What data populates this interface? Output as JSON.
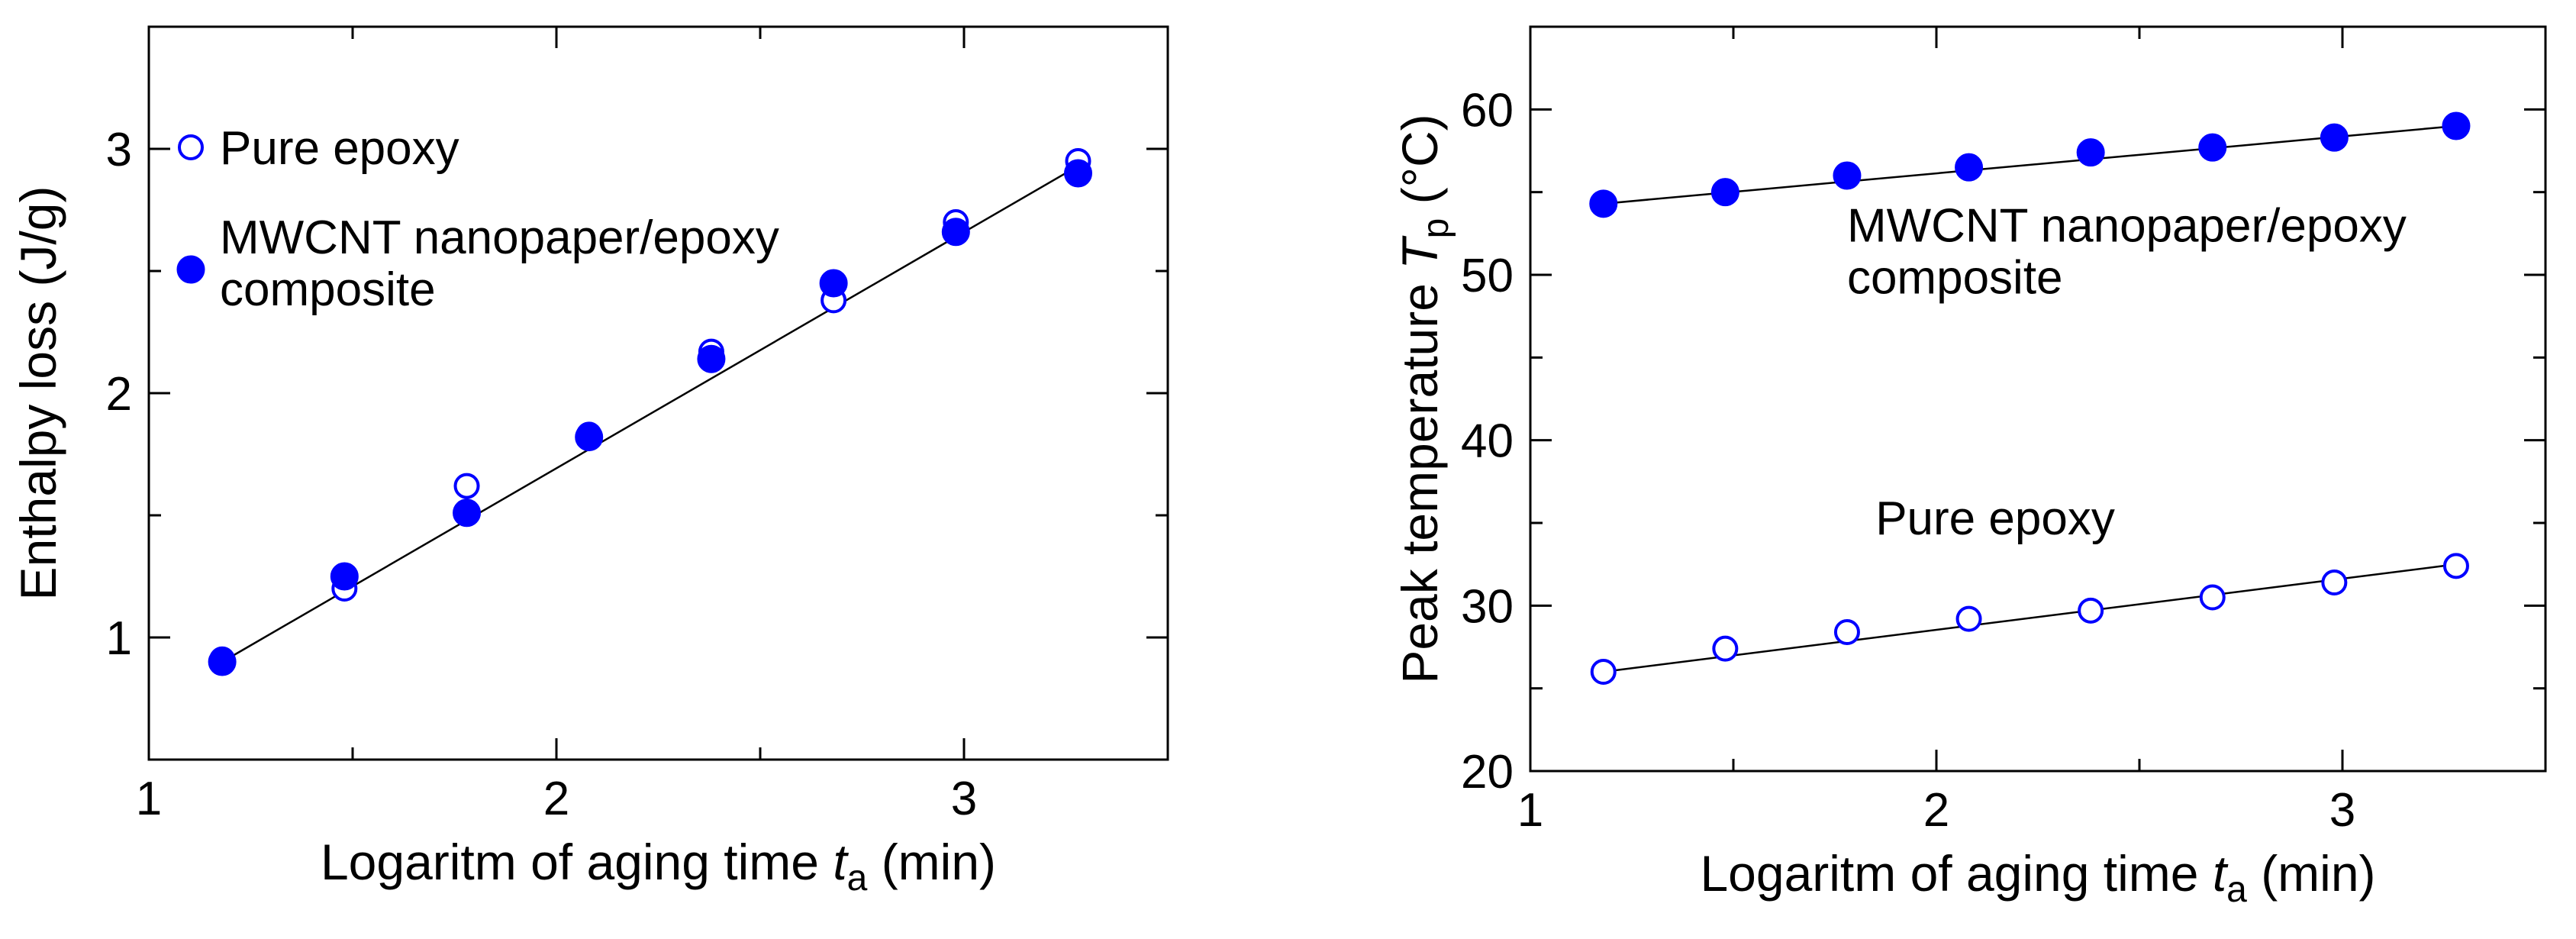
{
  "chart_data": [
    {
      "type": "scatter",
      "title": "",
      "xlabel": "Logaritm of aging time t_a (min)",
      "xlabel_parts": {
        "before": "Logaritm of aging time ",
        "var": "t",
        "sub": "a",
        "after": " (min)"
      },
      "ylabel": "Enthalpy loss (J/g)",
      "xlim": [
        1,
        3.5
      ],
      "ylim": [
        0.5,
        3.5
      ],
      "xticks": [
        1,
        2,
        3
      ],
      "yticks": [
        1,
        2,
        3
      ],
      "x_tick_labels": [
        "1",
        "2",
        "3"
      ],
      "y_tick_labels": [
        "1",
        "2",
        "3"
      ],
      "legend": [
        {
          "label": "Pure epoxy",
          "marker": "open-circle"
        },
        {
          "label_lines": [
            "MWCNT nanopaper/epoxy",
            "composite"
          ],
          "marker": "filled-circle"
        }
      ],
      "series": [
        {
          "name": "Pure epoxy",
          "marker": "open-circle",
          "color": "#0000ff",
          "x": [
            1.18,
            1.48,
            1.78,
            2.08,
            2.38,
            2.68,
            2.98,
            3.28
          ],
          "y": [
            0.91,
            1.2,
            1.62,
            1.83,
            2.17,
            2.38,
            2.7,
            2.95
          ]
        },
        {
          "name": "MWCNT nanopaper/epoxy composite",
          "marker": "filled-circle",
          "color": "#0000ff",
          "x": [
            1.18,
            1.48,
            1.78,
            2.08,
            2.38,
            2.68,
            2.98,
            3.28
          ],
          "y": [
            0.9,
            1.25,
            1.51,
            1.82,
            2.14,
            2.45,
            2.66,
            2.9
          ]
        }
      ],
      "fit_lines": [
        {
          "x": [
            1.18,
            3.28
          ],
          "y": [
            0.9,
            2.93
          ]
        }
      ]
    },
    {
      "type": "scatter",
      "title": "",
      "xlabel": "Logaritm of aging time t_a (min)",
      "xlabel_parts": {
        "before": "Logaritm of aging time ",
        "var": "t",
        "sub": "a",
        "after": " (min)"
      },
      "ylabel": "Peak temperature T_p (°C)",
      "ylabel_parts": {
        "before": "Peak temperature ",
        "var": "T",
        "sub": "p",
        "after": " (°C)"
      },
      "xlim": [
        1,
        3.5
      ],
      "ylim": [
        20,
        65
      ],
      "xticks": [
        1,
        2,
        3
      ],
      "yticks": [
        20,
        30,
        40,
        50,
        60
      ],
      "x_tick_labels": [
        "1",
        "2",
        "3"
      ],
      "y_tick_labels": [
        "20",
        "30",
        "40",
        "50",
        "60"
      ],
      "annotations": [
        {
          "lines": [
            "MWCNT nanopaper/epoxy",
            "composite"
          ],
          "x": 1.78,
          "y": 52
        },
        {
          "lines": [
            "Pure epoxy"
          ],
          "x": 1.85,
          "y": 34.3
        }
      ],
      "series": [
        {
          "name": "MWCNT nanopaper/epoxy composite",
          "marker": "filled-circle",
          "color": "#0000ff",
          "x": [
            1.18,
            1.48,
            1.78,
            2.08,
            2.38,
            2.68,
            2.98,
            3.28
          ],
          "y": [
            54.3,
            55,
            56,
            56.5,
            57.4,
            57.7,
            58.3,
            59
          ]
        },
        {
          "name": "Pure epoxy",
          "marker": "open-circle",
          "color": "#0000ff",
          "x": [
            1.18,
            1.48,
            1.78,
            2.08,
            2.38,
            2.68,
            2.98,
            3.28
          ],
          "y": [
            26,
            27.4,
            28.4,
            29.2,
            29.7,
            30.5,
            31.4,
            32.4
          ]
        }
      ],
      "fit_lines": [
        {
          "x": [
            1.18,
            3.28
          ],
          "y": [
            54.3,
            59.0
          ]
        },
        {
          "x": [
            1.18,
            3.28
          ],
          "y": [
            26.0,
            32.5
          ]
        }
      ]
    }
  ]
}
